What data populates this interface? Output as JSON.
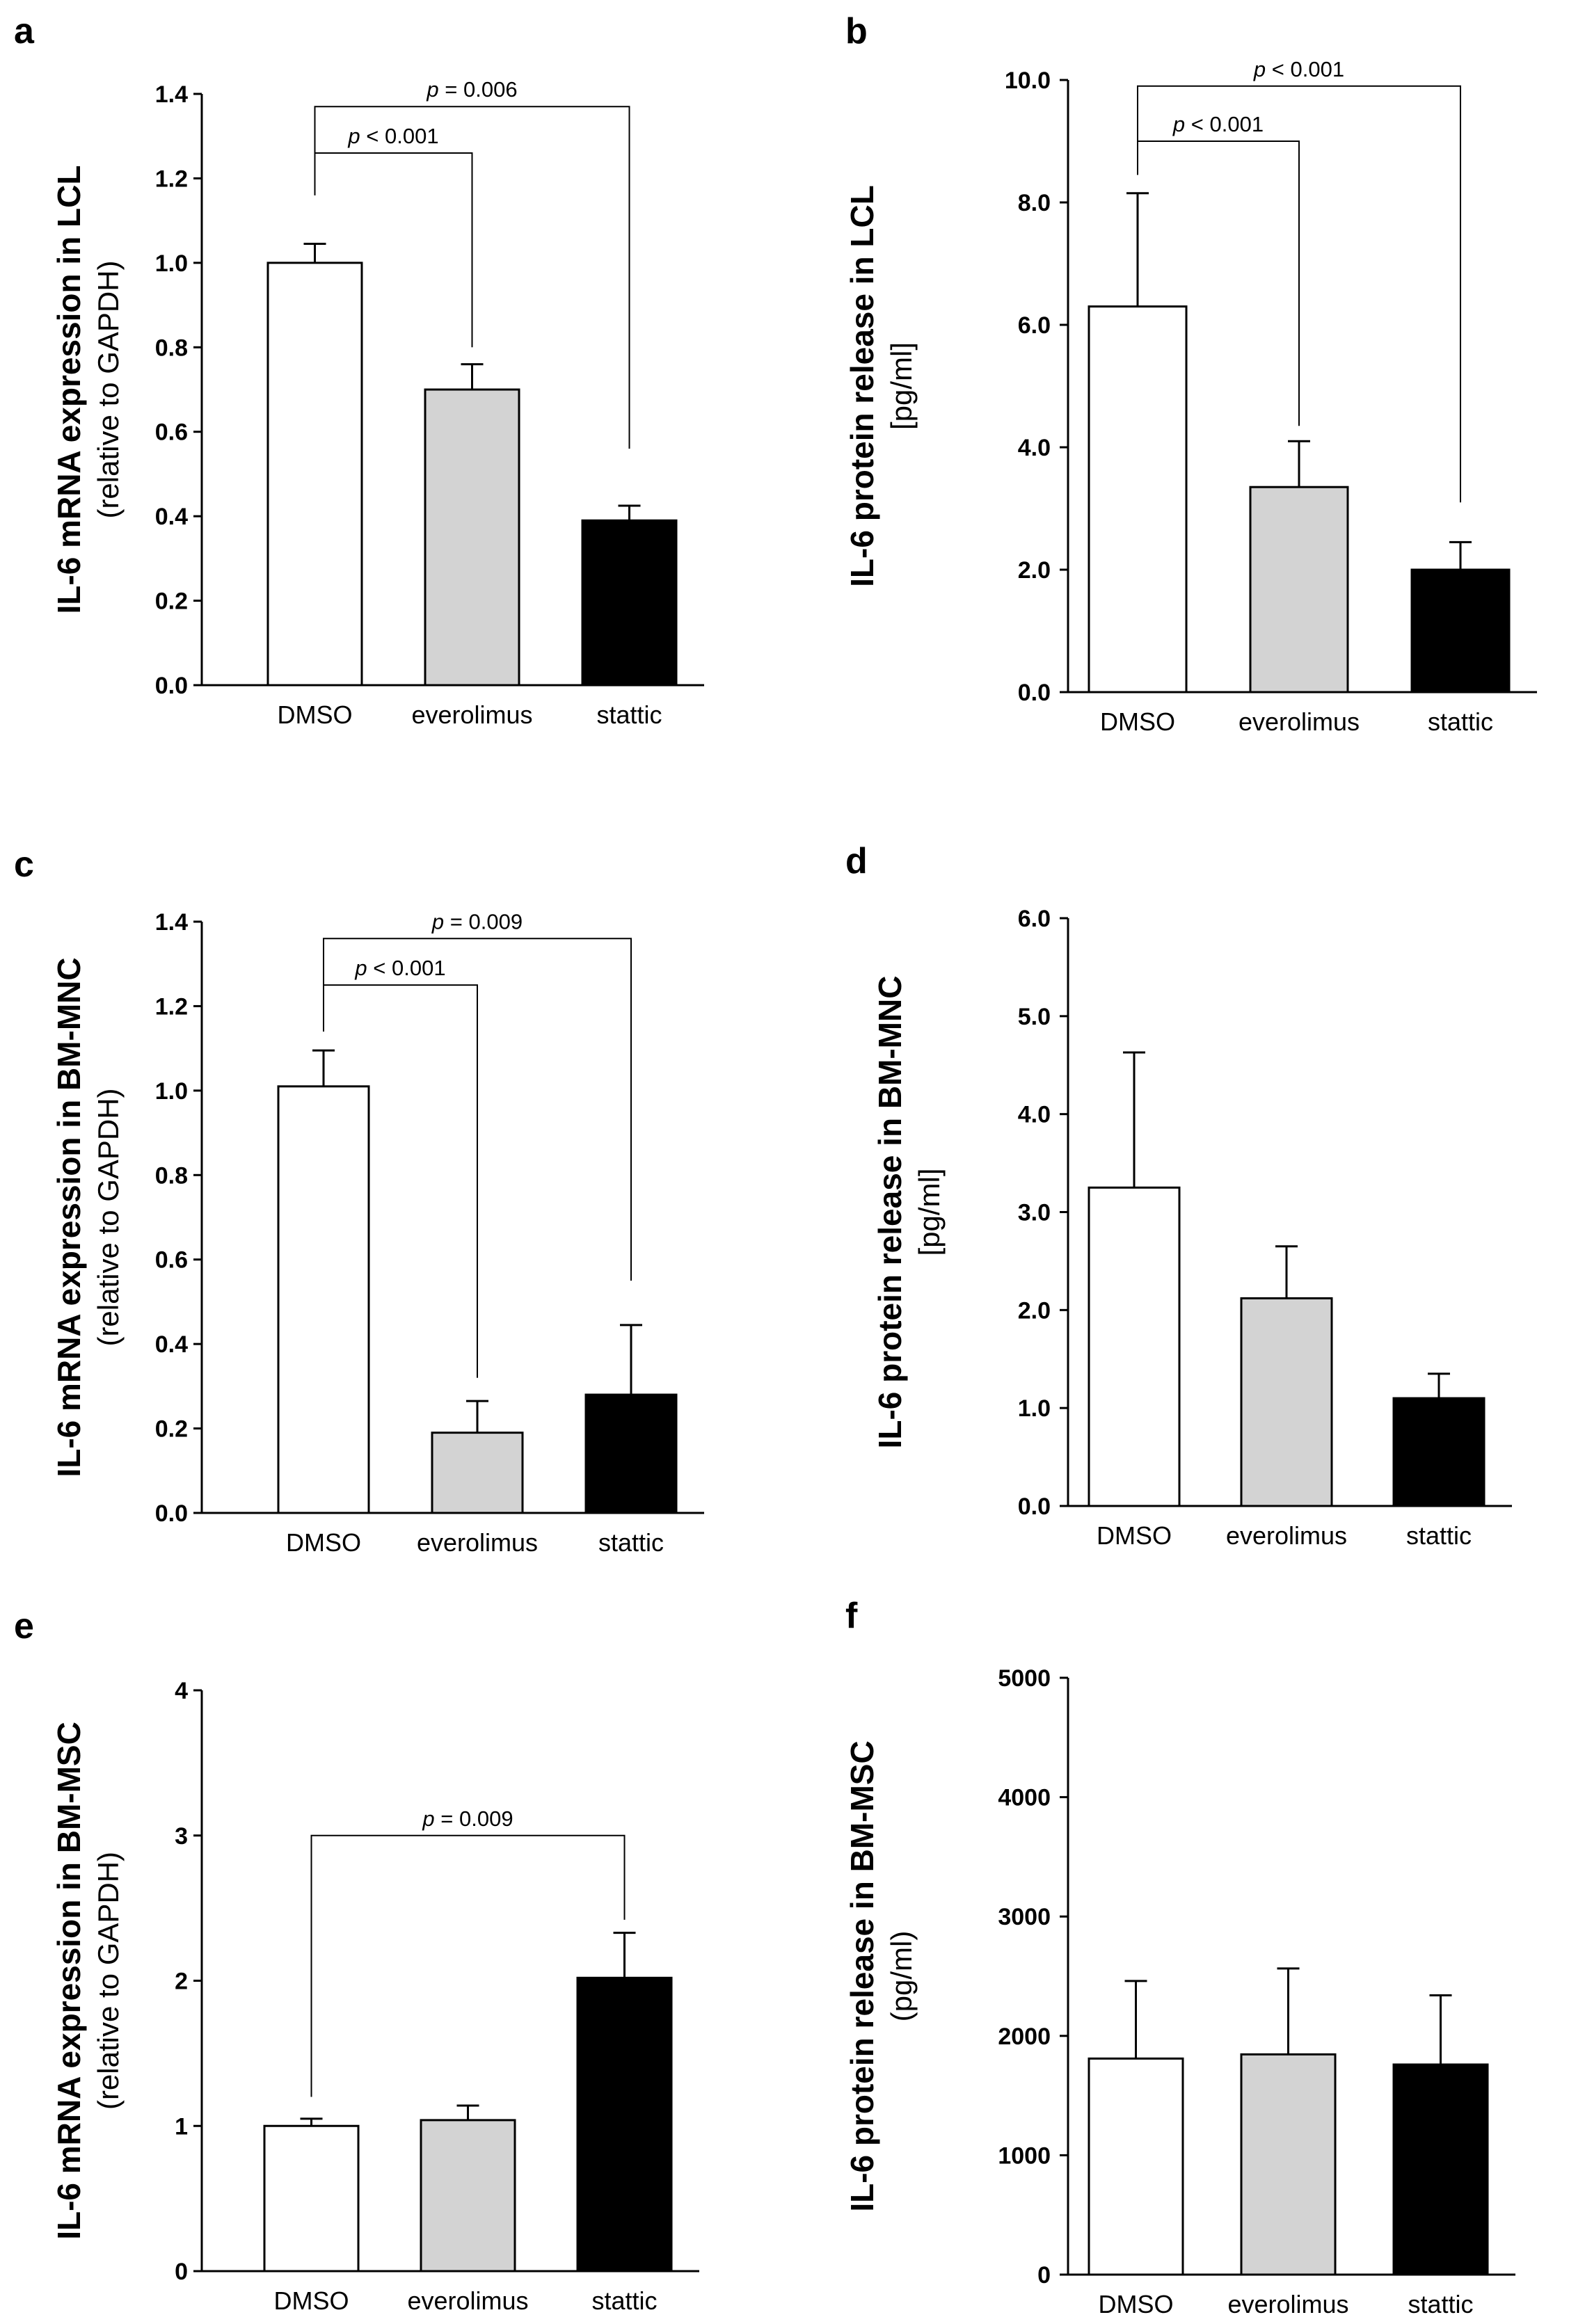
{
  "colors": {
    "axis": "#000000",
    "dmso": "#ffffff",
    "everolimus": "#d3d3d3",
    "stattic": "#000000"
  },
  "chart_data": [
    {
      "id": "a",
      "type": "bar",
      "panel_label": "a",
      "categories": [
        "DMSO",
        "everolimus",
        "stattic"
      ],
      "values": [
        1.0,
        0.7,
        0.39
      ],
      "errors": [
        0.045,
        0.06,
        0.035
      ],
      "ylim": [
        0,
        1.4
      ],
      "ticks": [
        "0.0",
        "0.2",
        "0.4",
        "0.6",
        "0.8",
        "1.0",
        "1.2",
        "1.4"
      ],
      "tick_values": [
        0,
        0.2,
        0.4,
        0.6,
        0.8,
        1.0,
        1.2,
        1.4
      ],
      "ylabel": "IL-6 mRNA expression in LCL",
      "ylabel2": "(relative to GAPDH)",
      "xlabel": "",
      "brackets": [
        {
          "p": "p",
          "text": " < 0.001",
          "from": 0,
          "to": 1,
          "y": 1.26,
          "from_drop": 1.16,
          "to_drop": 0.8
        },
        {
          "p": "p",
          "text": " = 0.006",
          "from": 0,
          "to": 2,
          "y": 1.37,
          "from_drop": 1.16,
          "to_drop": 0.56
        }
      ]
    },
    {
      "id": "b",
      "type": "bar",
      "panel_label": "b",
      "categories": [
        "DMSO",
        "everolimus",
        "stattic"
      ],
      "values": [
        6.3,
        3.35,
        2.0
      ],
      "errors": [
        1.85,
        0.75,
        0.45
      ],
      "ylim": [
        0,
        10
      ],
      "ticks": [
        "0.0",
        "2.0",
        "4.0",
        "6.0",
        "8.0",
        "10.0"
      ],
      "tick_values": [
        0,
        2,
        4,
        6,
        8,
        10
      ],
      "ylabel": "IL-6 protein release in LCL",
      "ylabel2": "[pg/ml]",
      "xlabel": "",
      "brackets": [
        {
          "p": "p",
          "text": " < 0.001",
          "from": 0,
          "to": 1,
          "y": 9.0,
          "from_drop": 8.45,
          "to_drop": 4.35
        },
        {
          "p": "p",
          "text": " < 0.001",
          "from": 0,
          "to": 2,
          "y": 9.9,
          "from_drop": 8.45,
          "to_drop": 3.1
        }
      ]
    },
    {
      "id": "c",
      "type": "bar",
      "panel_label": "c",
      "categories": [
        "DMSO",
        "everolimus",
        "stattic"
      ],
      "values": [
        1.01,
        0.19,
        0.28
      ],
      "errors": [
        0.085,
        0.075,
        0.165
      ],
      "ylim": [
        0,
        1.4
      ],
      "ticks": [
        "0.0",
        "0.2",
        "0.4",
        "0.6",
        "0.8",
        "1.0",
        "1.2",
        "1.4"
      ],
      "tick_values": [
        0,
        0.2,
        0.4,
        0.6,
        0.8,
        1.0,
        1.2,
        1.4
      ],
      "ylabel": "IL-6 mRNA expression in BM-MNC",
      "ylabel2": "(relative to GAPDH)",
      "xlabel": "",
      "brackets": [
        {
          "p": "p",
          "text": " < 0.001",
          "from": 0,
          "to": 1,
          "y": 1.25,
          "from_drop": 1.14,
          "to_drop": 0.32
        },
        {
          "p": "p",
          "text": " = 0.009",
          "from": 0,
          "to": 2,
          "y": 1.36,
          "from_drop": 1.14,
          "to_drop": 0.55
        }
      ]
    },
    {
      "id": "d",
      "type": "bar",
      "panel_label": "d",
      "categories": [
        "DMSO",
        "everolimus",
        "stattic"
      ],
      "values": [
        3.25,
        2.12,
        1.1
      ],
      "errors": [
        1.38,
        0.53,
        0.25
      ],
      "ylim": [
        0,
        6
      ],
      "ticks": [
        "0.0",
        "1.0",
        "2.0",
        "3.0",
        "4.0",
        "5.0",
        "6.0"
      ],
      "tick_values": [
        0,
        1,
        2,
        3,
        4,
        5,
        6
      ],
      "ylabel": "IL-6 protein release in BM-MNC",
      "ylabel2": "[pg/ml]",
      "xlabel": "",
      "brackets": []
    },
    {
      "id": "e",
      "type": "bar",
      "panel_label": "e",
      "categories": [
        "DMSO",
        "everolimus",
        "stattic"
      ],
      "values": [
        1.0,
        1.04,
        2.02
      ],
      "errors": [
        0.05,
        0.1,
        0.31
      ],
      "ylim": [
        0,
        4
      ],
      "ticks": [
        "0",
        "1",
        "2",
        "3",
        "4"
      ],
      "tick_values": [
        0,
        1,
        2,
        3,
        4
      ],
      "ylabel": "IL-6 mRNA expression in BM-MSC",
      "ylabel2": "(relative to GAPDH)",
      "xlabel": "",
      "brackets": [
        {
          "p": "p",
          "text": " = 0.009",
          "from": 0,
          "to": 2,
          "y": 3.0,
          "from_drop": 1.2,
          "to_drop": 2.42
        }
      ]
    },
    {
      "id": "f",
      "type": "bar",
      "panel_label": "f",
      "categories": [
        "DMSO",
        "everolimus",
        "stattic"
      ],
      "values": [
        1810,
        1845,
        1760
      ],
      "errors": [
        650,
        720,
        580
      ],
      "ylim": [
        0,
        5000
      ],
      "ticks": [
        "0",
        "1000",
        "2000",
        "3000",
        "4000",
        "5000"
      ],
      "tick_values": [
        0,
        1000,
        2000,
        3000,
        4000,
        5000
      ],
      "ylabel": "IL-6 protein release in BM-MSC",
      "ylabel2": "(pg/ml)",
      "xlabel": "",
      "brackets": []
    }
  ]
}
